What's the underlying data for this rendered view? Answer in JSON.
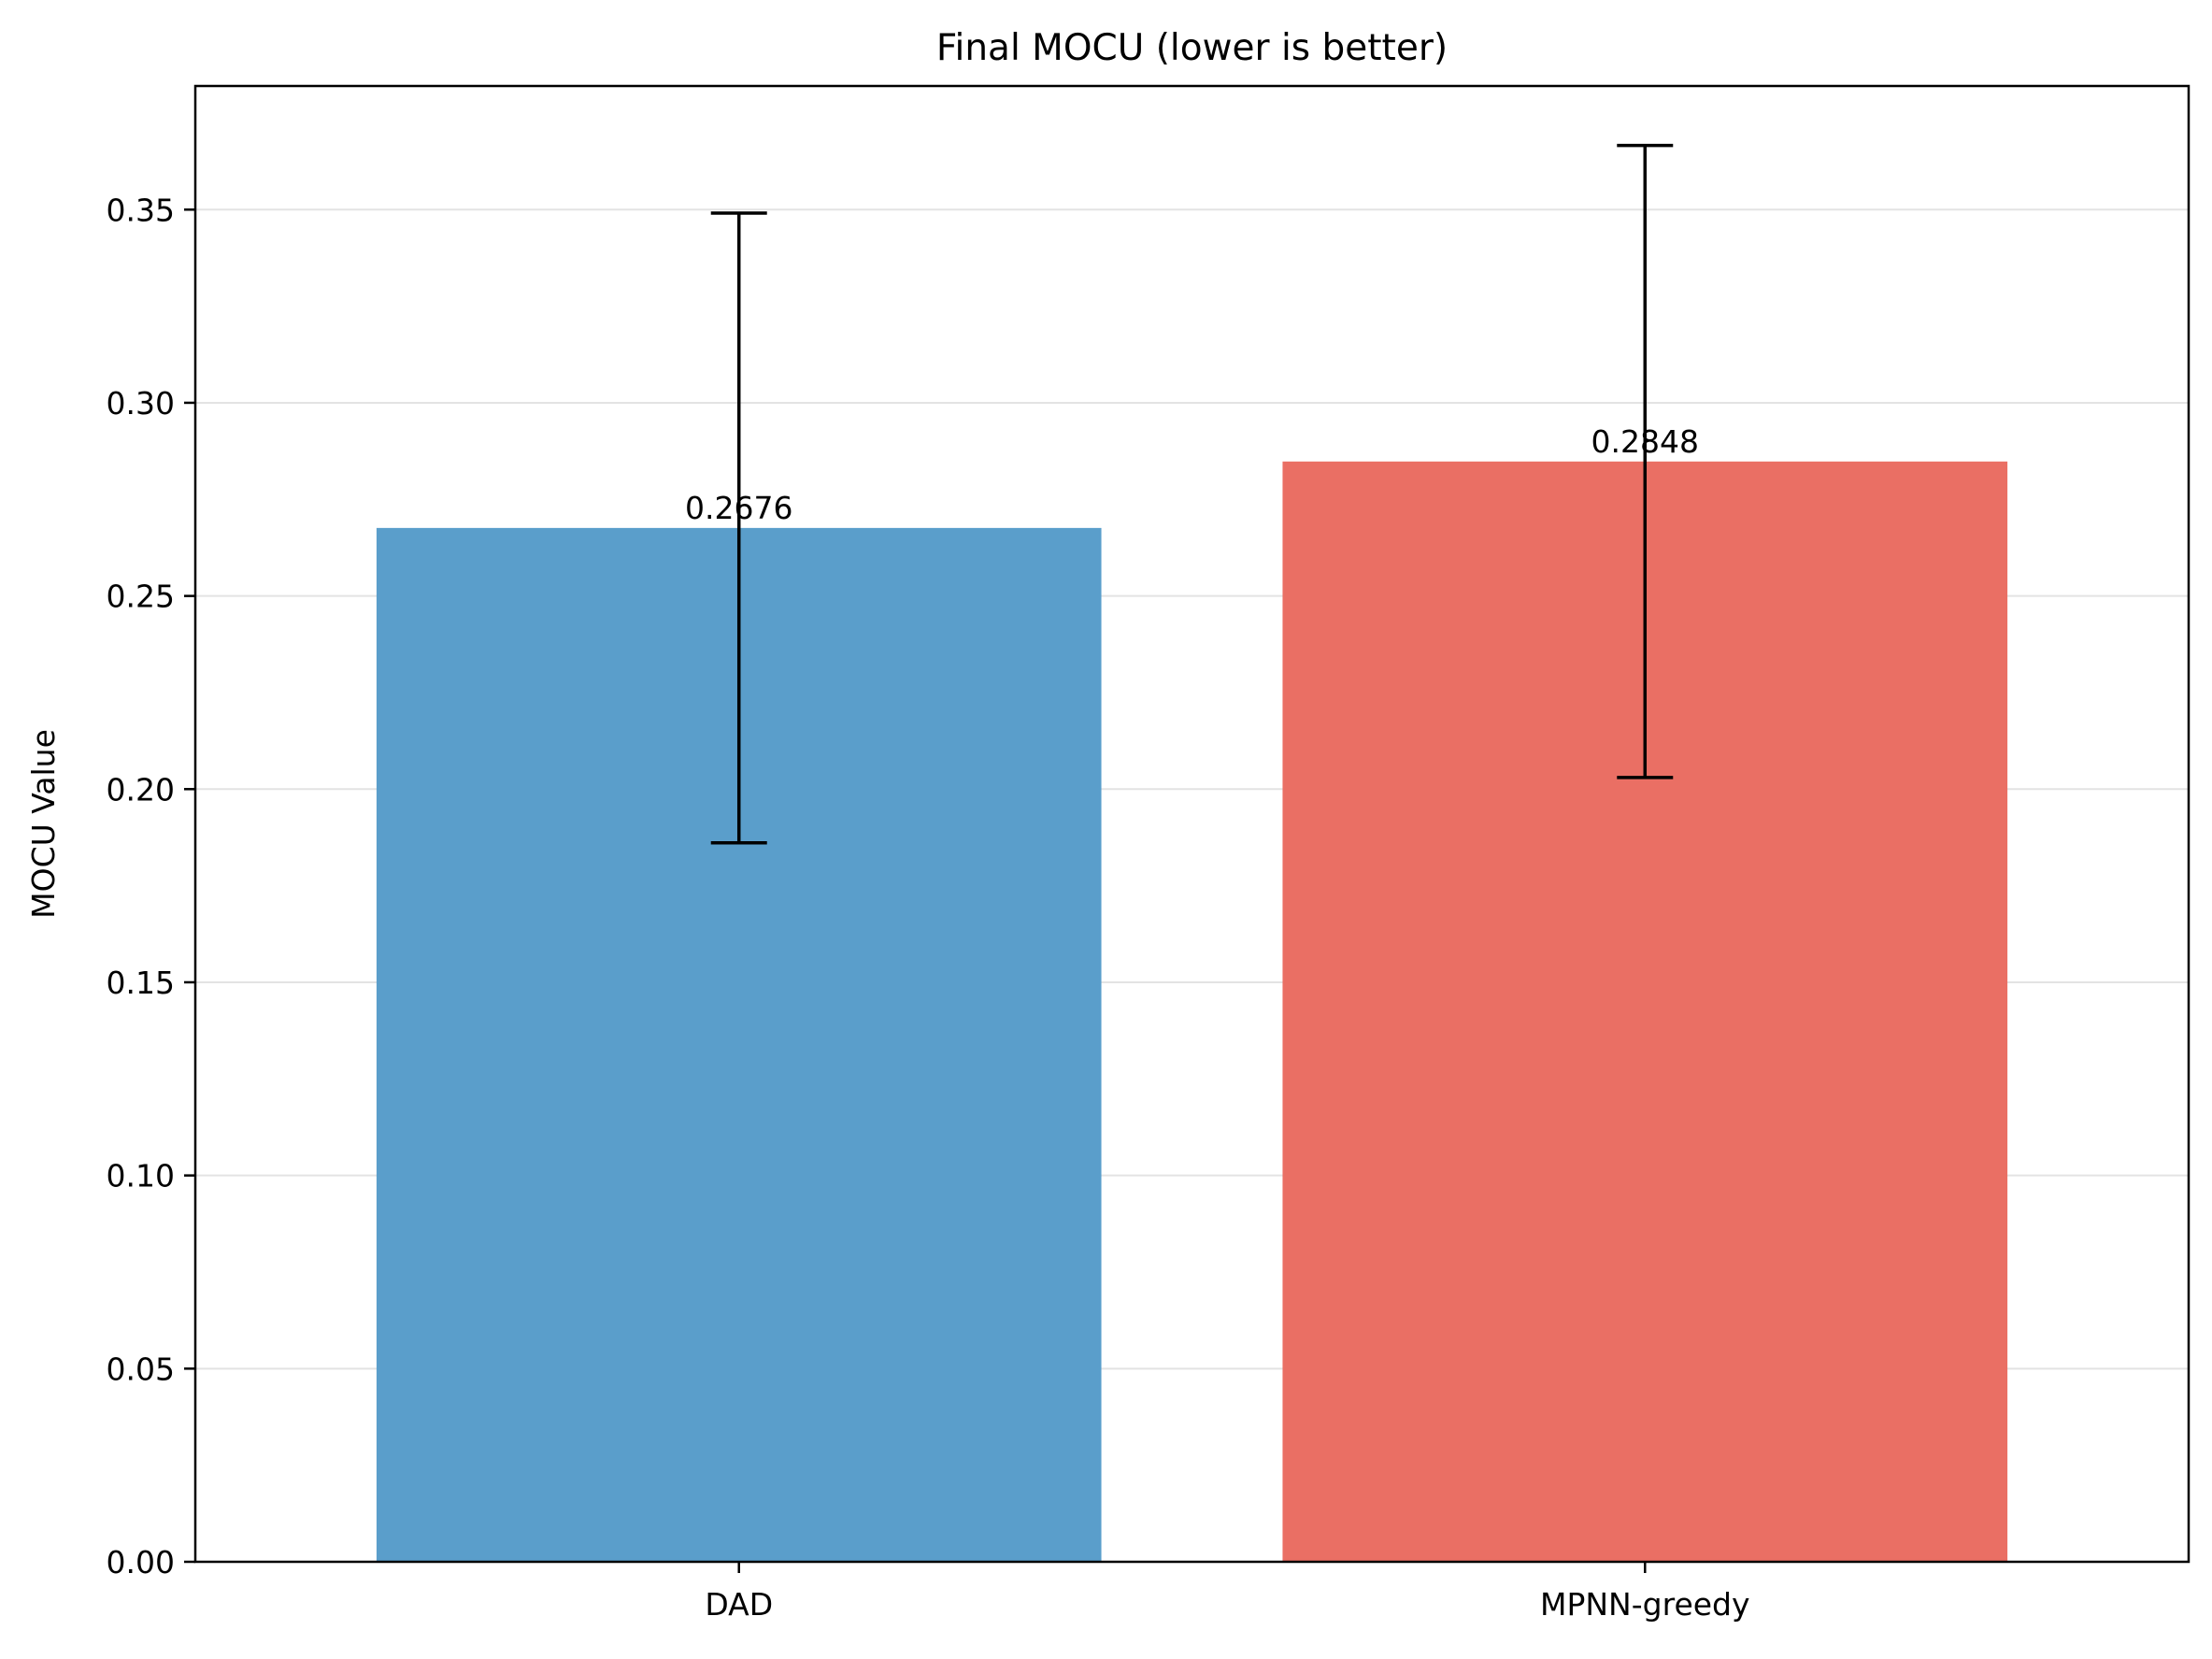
{
  "chart_data": {
    "type": "bar",
    "title": "Final MOCU (lower is better)",
    "xlabel": "",
    "ylabel": "MOCU Value",
    "categories": [
      "DAD",
      "MPNN-greedy"
    ],
    "values": [
      0.2676,
      0.2848
    ],
    "value_labels": [
      "0.2676",
      "0.2848"
    ],
    "error": [
      0.0815,
      0.0818
    ],
    "colors": [
      "#5a9ecb",
      "#ea6f64"
    ],
    "ylim": [
      0,
      0.382
    ],
    "yticks": [
      0,
      0.05,
      0.1,
      0.15,
      0.2,
      0.25,
      0.3,
      0.35
    ],
    "ytick_labels": [
      "0.00",
      "0.05",
      "0.10",
      "0.15",
      "0.20",
      "0.25",
      "0.30",
      "0.35"
    ],
    "grid": "y",
    "legend": "none"
  }
}
